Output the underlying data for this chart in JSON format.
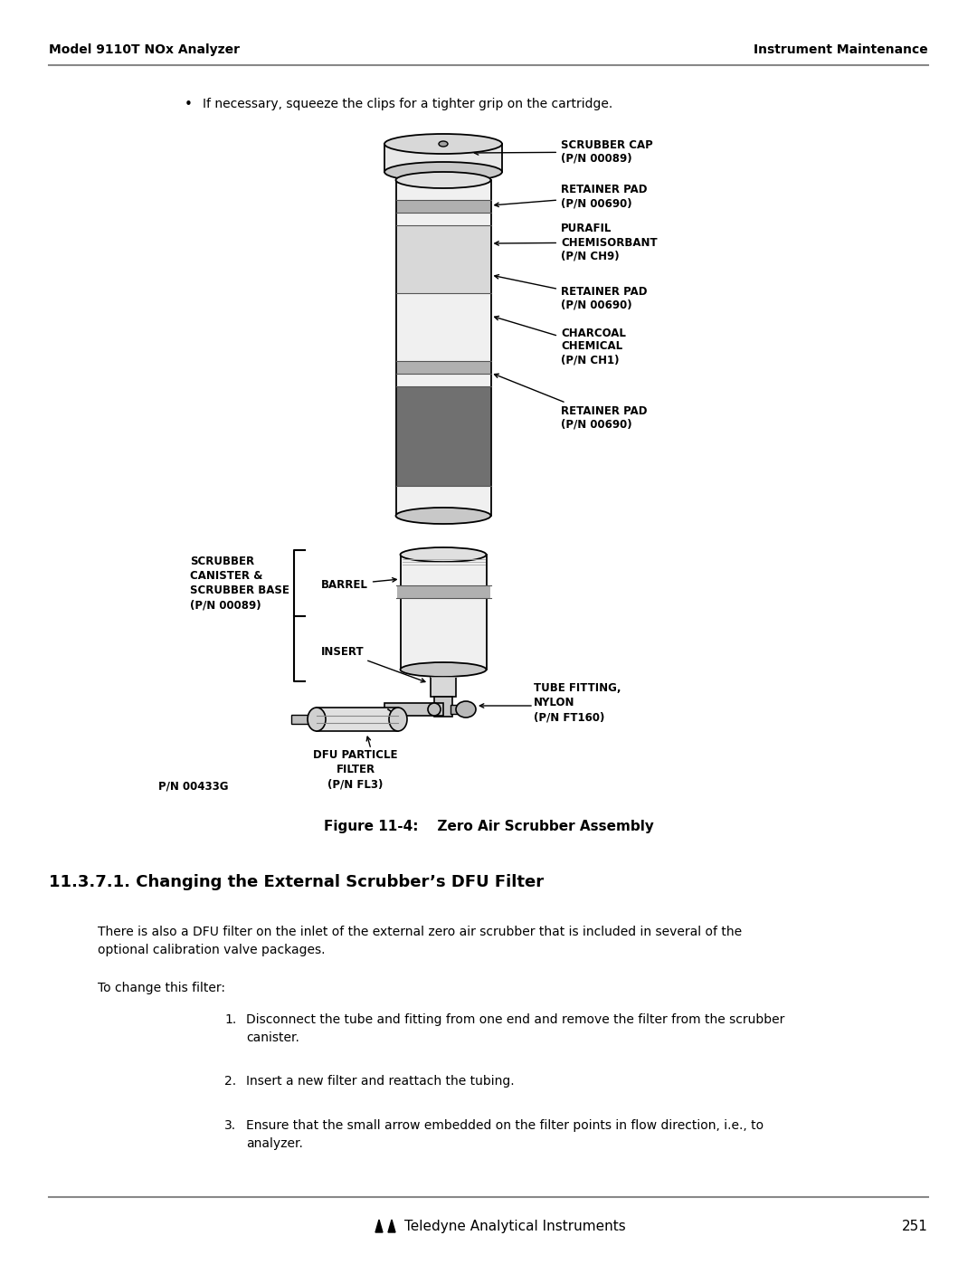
{
  "page_width": 10.8,
  "page_height": 13.97,
  "bg_color": "#ffffff",
  "header_left": "Model 9110T NOx Analyzer",
  "header_right": "Instrument Maintenance",
  "footer_text": "Teledyne Analytical Instruments",
  "footer_page": "251",
  "bullet_text": "If necessary, squeeze the clips for a tighter grip on the cartridge.",
  "figure_caption": "Figure 11-4:    Zero Air Scrubber Assembly",
  "pn_label": "P/N 00433G",
  "section_title": "11.3.7.1. Changing the External Scrubber’s DFU Filter",
  "body_para1": "There is also a DFU filter on the inlet of the external zero air scrubber that is included in several of the",
  "body_para2": "optional calibration valve packages.",
  "intro_step": "To change this filter:",
  "step1": "Disconnect the tube and fitting from one end and remove the filter from the scrubber",
  "step1b": "canister.",
  "step2": "Insert a new filter and reattach the tubing.",
  "step3": "Ensure that the small arrow embedded on the filter points in flow direction, i.e., to",
  "step3b": "analyzer.",
  "diagram_labels": {
    "scrubber_cap": "SCRUBBER CAP\n(P/N 00089)",
    "retainer_pad1": "RETAINER PAD\n(P/N 00690)",
    "purafil": "PURAFIL\nCHEMISORBANT\n(P/N CH9)",
    "retainer_pad2": "RETAINER PAD\n(P/N 00690)",
    "charcoal": "CHARCOAL\nCHEMICAL\n(P/N CH1)",
    "retainer_pad3": "RETAINER PAD\n(P/N 00690)",
    "barrel": "BARREL",
    "insert": "INSERT",
    "scrubber_canister": "SCRUBBER\nCANISTER &\nSCRUBBER BASE\n(P/N 00089)",
    "dfu_filter": "DFU PARTICLE\nFILTER\n(P/N FL3)",
    "tube_fitting": "TUBE FITTING,\nNYLON\n(P/N FT160)"
  }
}
